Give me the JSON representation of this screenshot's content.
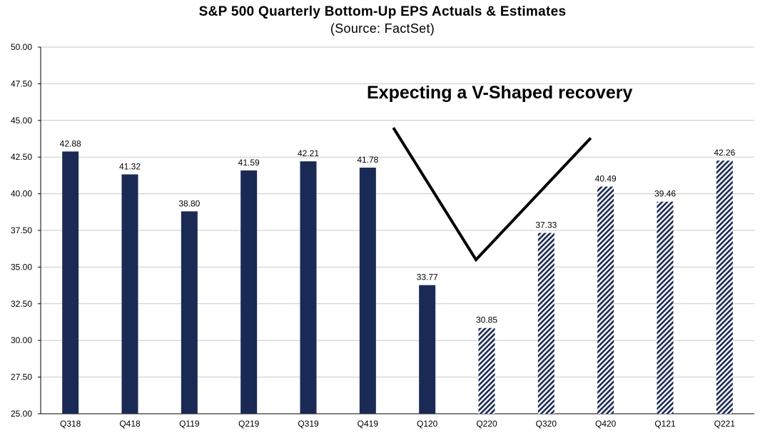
{
  "chart_data": {
    "type": "bar",
    "title": "S&P 500 Quarterly Bottom-Up EPS Actuals & Estimates",
    "subtitle": "(Source: FactSet)",
    "annotation": "Expecting a V-Shaped recovery",
    "categories": [
      "Q318",
      "Q418",
      "Q119",
      "Q219",
      "Q319",
      "Q419",
      "Q120",
      "Q220",
      "Q320",
      "Q420",
      "Q121",
      "Q221"
    ],
    "values": [
      42.88,
      41.32,
      38.8,
      41.59,
      42.21,
      41.78,
      33.77,
      30.85,
      37.33,
      40.49,
      39.46,
      42.26
    ],
    "value_labels": [
      "42.88",
      "41.32",
      "38.80",
      "41.59",
      "42.21",
      "41.78",
      "33.77",
      "30.85",
      "37.33",
      "40.49",
      "39.46",
      "42.26"
    ],
    "bar_kind": [
      "actual",
      "actual",
      "actual",
      "actual",
      "actual",
      "actual",
      "actual",
      "estimate",
      "estimate",
      "estimate",
      "estimate",
      "estimate"
    ],
    "ylim": [
      25,
      50
    ],
    "yticks": [
      "25.00",
      "27.50",
      "30.00",
      "32.50",
      "35.00",
      "37.50",
      "40.00",
      "42.50",
      "45.00",
      "47.50",
      "50.00"
    ],
    "grid": true,
    "xlabel": "",
    "ylabel": "",
    "colors": {
      "actual": "#1b2a55",
      "estimate": "#1b2a55",
      "grid": "#c8c8c8",
      "line": "#000000"
    },
    "v_line_points": [
      {
        "category": "Q120",
        "offset": -0.57,
        "value": 44.5
      },
      {
        "category": "Q220",
        "offset": -0.18,
        "value": 35.5
      },
      {
        "category": "Q420",
        "offset": -0.25,
        "value": 43.8
      }
    ]
  }
}
